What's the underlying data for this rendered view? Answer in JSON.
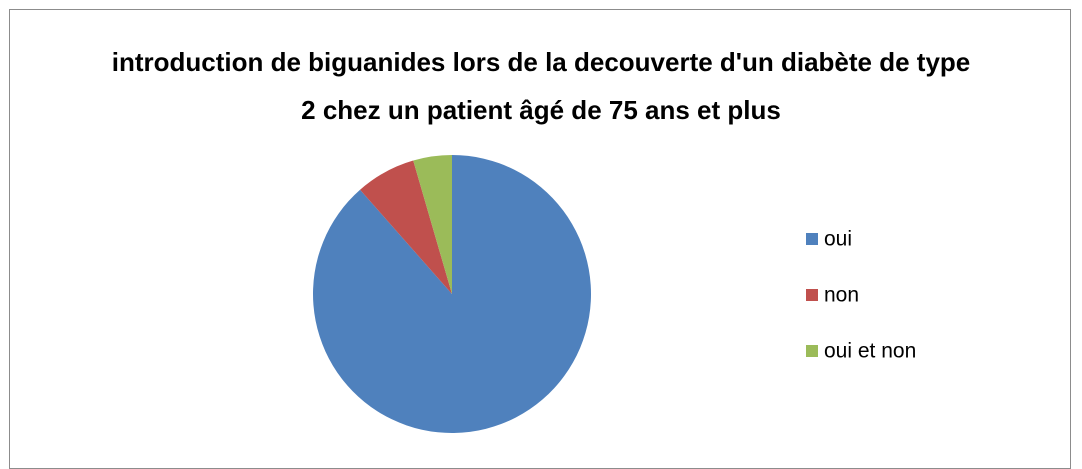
{
  "chart_data": {
    "type": "pie",
    "title": "introduction de biguanides lors de la decouverte d'un diabète de type 2 chez un patient âgé de 75 ans et plus",
    "categories": [
      "oui",
      "non",
      "oui et non"
    ],
    "values": [
      88.5,
      7,
      4.5
    ],
    "colors": [
      "#4f81bd",
      "#c0504d",
      "#9bbb59"
    ],
    "legend": "right"
  }
}
